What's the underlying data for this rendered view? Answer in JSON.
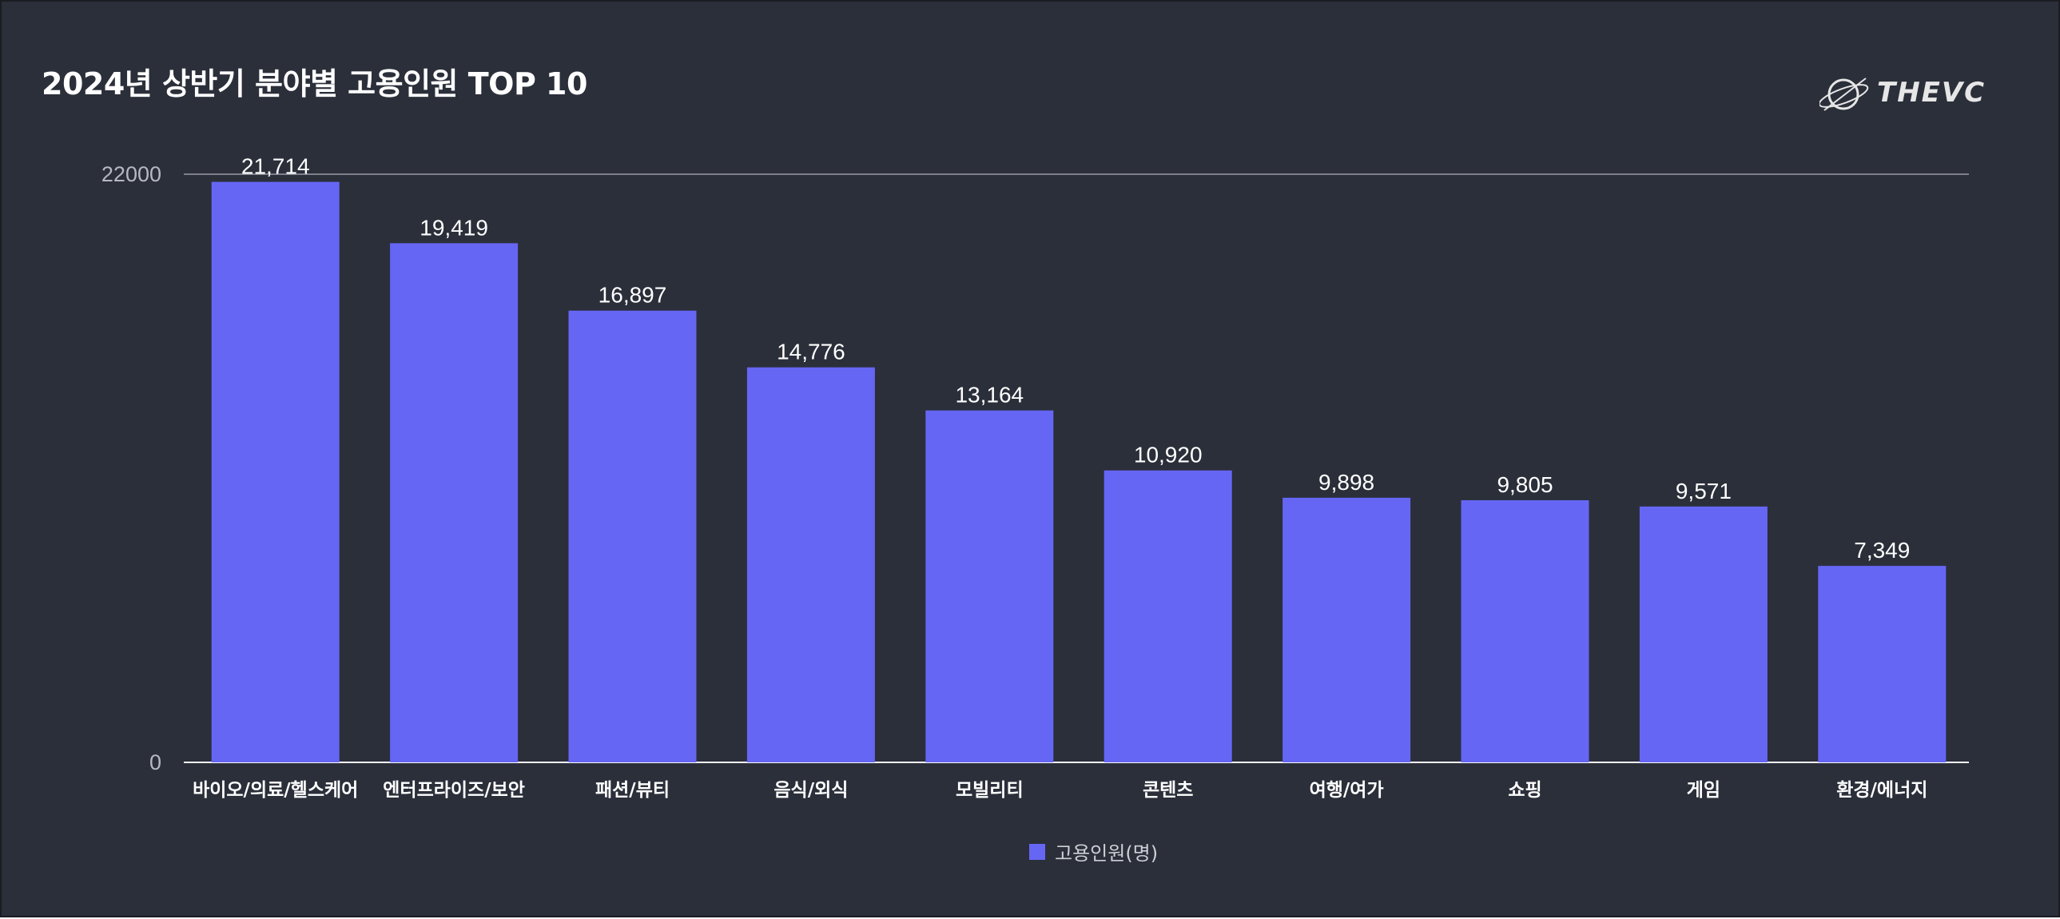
{
  "title": "2024년 상반기 분야별 고용인원 TOP 10",
  "logo": {
    "text": "THEVC",
    "icon": "orbit-logo-icon"
  },
  "legend": {
    "label": "고용인원(명)",
    "color": "#6666f5"
  },
  "colors": {
    "background": "#2b2f3a",
    "bar": "#6666f5",
    "axis_text": "#b7b9c2",
    "label_text": "#ffffff",
    "gridline": "#9a9ca6"
  },
  "chart_data": {
    "type": "bar",
    "title": "2024년 상반기 분야별 고용인원 TOP 10",
    "xlabel": "",
    "ylabel": "",
    "ylim": [
      0,
      22000
    ],
    "y_ticks": [
      "0",
      "22000"
    ],
    "grid": true,
    "legend_position": "bottom-center",
    "categories": [
      "바이오/의료/헬스케어",
      "엔터프라이즈/보안",
      "패션/뷰티",
      "음식/외식",
      "모빌리티",
      "콘텐츠",
      "여행/여가",
      "쇼핑",
      "게임",
      "환경/에너지"
    ],
    "series": [
      {
        "name": "고용인원(명)",
        "values": [
          21714,
          19419,
          16897,
          14776,
          13164,
          10920,
          9898,
          9805,
          9571,
          7349
        ],
        "labels": [
          "21,714",
          "19,419",
          "16,897",
          "14,776",
          "13,164",
          "10,920",
          "9,898",
          "9,805",
          "9,571",
          "7,349"
        ]
      }
    ]
  }
}
